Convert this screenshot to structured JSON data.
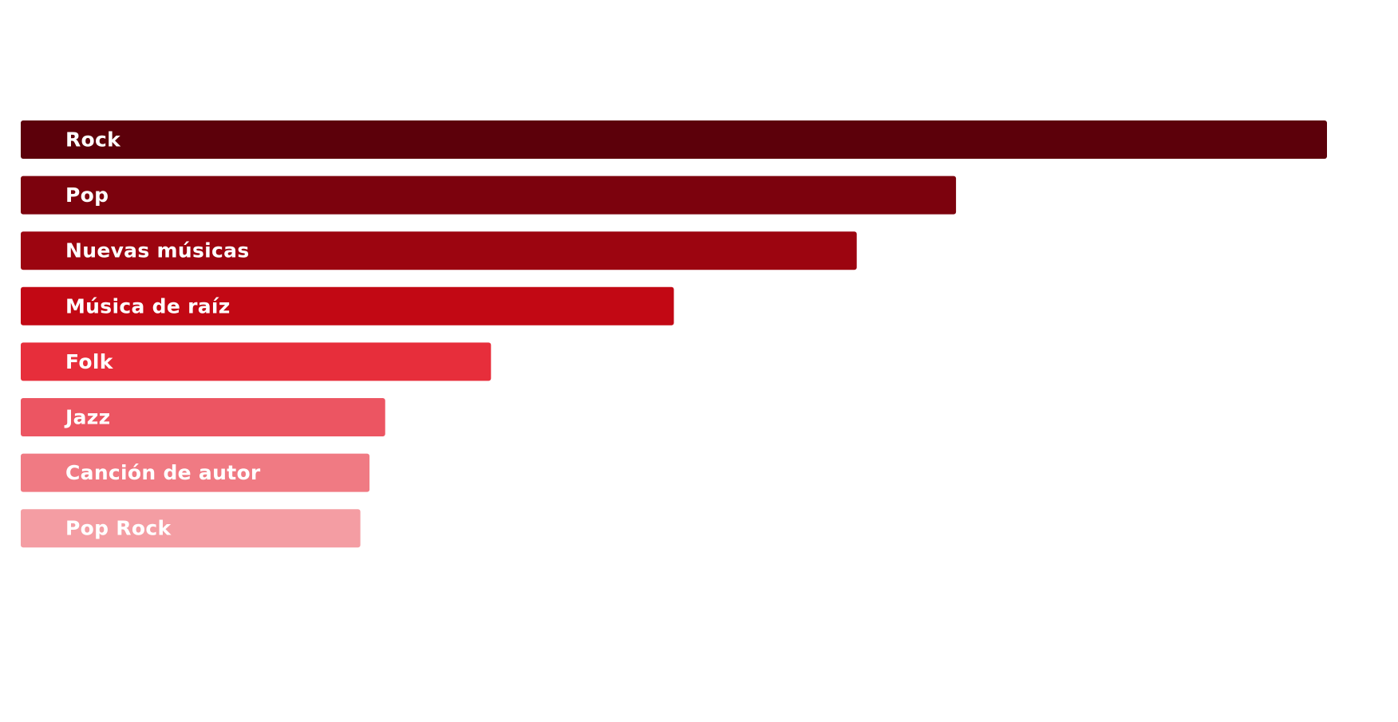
{
  "chart_data": {
    "type": "bar",
    "orientation": "horizontal",
    "categories": [
      "Rock",
      "Pop",
      "Nuevas músicas",
      "Música de raíz",
      "Folk",
      "Jazz",
      "Canción de autor",
      "Pop Rock"
    ],
    "values": [
      100,
      71.6,
      64.0,
      50.0,
      36.0,
      27.9,
      26.7,
      26.0
    ],
    "colors": [
      "#5c000a",
      "#7c020d",
      "#9c0510",
      "#c20814",
      "#e72e3b",
      "#ec5562",
      "#f07a83",
      "#f49da3"
    ],
    "title": "",
    "xlabel": "",
    "ylabel": "",
    "xlim": [
      0,
      100
    ],
    "grid": false,
    "legend": "none"
  }
}
